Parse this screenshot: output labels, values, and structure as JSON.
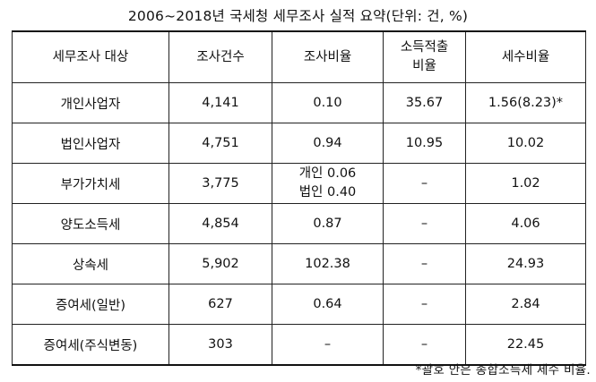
{
  "title": "2006~2018년 국세청 세무조사 실적 요약(단위: 건, %)",
  "table": {
    "headers": [
      [
        "세무조사 대상"
      ],
      [
        "조사건수"
      ],
      [
        "조사비율"
      ],
      [
        "소득적출",
        "비율"
      ],
      [
        "세수비율"
      ]
    ],
    "rows": [
      [
        "개인사업자",
        "4,141",
        [
          "0.10"
        ],
        "35.67",
        "1.56(8.23)*"
      ],
      [
        "법인사업자",
        "4,751",
        [
          "0.94"
        ],
        "10.95",
        "10.02"
      ],
      [
        "부가가치세",
        "3,775",
        [
          "개인 0.06",
          "법인 0.40"
        ],
        "–",
        "1.02"
      ],
      [
        "양도소득세",
        "4,854",
        [
          "0.87"
        ],
        "–",
        "4.06"
      ],
      [
        "상속세",
        "5,902",
        [
          "102.38"
        ],
        "–",
        "24.93"
      ],
      [
        "증여세(일반)",
        "627",
        [
          "0.64"
        ],
        "–",
        "2.84"
      ],
      [
        "증여세(주식변동)",
        "303",
        [
          "–"
        ],
        "–",
        "22.45"
      ]
    ]
  },
  "footnote": "*괄호 안은 종합소득세 세수 비율."
}
